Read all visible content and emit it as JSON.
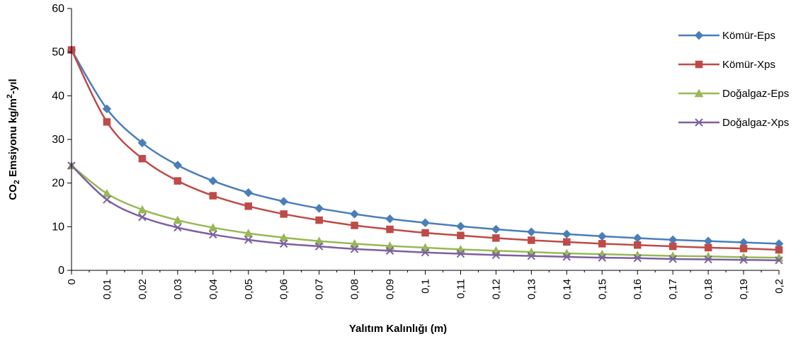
{
  "chart_data": {
    "type": "line",
    "xlabel": "Yalıtım Kalınlığı (m)",
    "ylabel": {
      "prefix": "CO",
      "sub": "2",
      "middle": " Emsiyonu kg/m",
      "sup": "2",
      "suffix": "-yıl"
    },
    "ylim": [
      0,
      60
    ],
    "yticks": [
      0,
      10,
      20,
      30,
      40,
      50,
      60
    ],
    "categories": [
      "0",
      "0,01",
      "0,02",
      "0,03",
      "0,04",
      "0,05",
      "0,06",
      "0,07",
      "0,08",
      "0,09",
      "0,1",
      "0,11",
      "0,12",
      "0,13",
      "0,14",
      "0,15",
      "0,16",
      "0,17",
      "0,18",
      "0,19",
      "0,2"
    ],
    "grid": false,
    "legend_position": "right",
    "series": [
      {
        "name": "Kömür-Eps",
        "color": "#4a7ebb",
        "marker": "diamond",
        "values": [
          50.5,
          37.0,
          29.2,
          24.1,
          20.5,
          17.8,
          15.8,
          14.2,
          12.9,
          11.8,
          10.9,
          10.1,
          9.4,
          8.8,
          8.3,
          7.8,
          7.4,
          7.0,
          6.7,
          6.4,
          6.1
        ]
      },
      {
        "name": "Kömür-Xps",
        "color": "#be4b48",
        "marker": "square",
        "values": [
          50.5,
          34.0,
          25.6,
          20.5,
          17.1,
          14.7,
          12.9,
          11.5,
          10.3,
          9.4,
          8.6,
          8.0,
          7.4,
          6.9,
          6.5,
          6.1,
          5.8,
          5.5,
          5.2,
          5.0,
          4.7
        ]
      },
      {
        "name": "Doğalgaz-Eps",
        "color": "#98b954",
        "marker": "triangle",
        "values": [
          24.0,
          17.6,
          13.9,
          11.5,
          9.8,
          8.5,
          7.5,
          6.7,
          6.1,
          5.6,
          5.2,
          4.8,
          4.5,
          4.2,
          3.9,
          3.7,
          3.5,
          3.3,
          3.2,
          3.0,
          2.9
        ]
      },
      {
        "name": "Doğalgaz-Xps",
        "color": "#7d60a0",
        "marker": "x",
        "values": [
          24.0,
          16.2,
          12.2,
          9.8,
          8.2,
          7.0,
          6.1,
          5.5,
          4.9,
          4.5,
          4.1,
          3.8,
          3.5,
          3.3,
          3.1,
          2.9,
          2.8,
          2.6,
          2.5,
          2.4,
          2.3
        ]
      }
    ]
  }
}
